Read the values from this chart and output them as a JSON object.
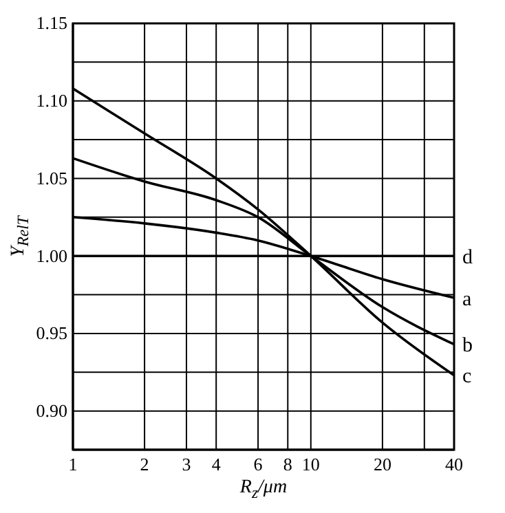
{
  "chart_data": {
    "type": "line",
    "xlabel": "R$_{z}$/μm",
    "ylabel": "Y$_{RelT}$",
    "log": "x",
    "x": [
      1,
      2,
      4,
      6,
      10,
      20,
      40
    ],
    "series": [
      {
        "name": "d",
        "color": "#000000",
        "values": [
          1.0,
          1.0,
          1.0,
          1.0,
          1.0,
          1.0,
          1.0
        ]
      },
      {
        "name": "a",
        "color": "#000000",
        "values": [
          1.025,
          1.021,
          1.015,
          1.01,
          1.0,
          0.985,
          0.973
        ]
      },
      {
        "name": "b",
        "color": "#000000",
        "values": [
          1.063,
          1.048,
          1.036,
          1.025,
          1.0,
          0.967,
          0.943
        ]
      },
      {
        "name": "c",
        "color": "#000000",
        "values": [
          1.108,
          1.079,
          1.05,
          1.03,
          1.0,
          0.957,
          0.923
        ]
      }
    ],
    "xlim": [
      1,
      40
    ],
    "xticks": [
      1,
      2,
      3,
      4,
      6,
      8,
      10,
      20,
      {
        "value": 30,
        "label": null
      },
      40
    ],
    "ylim": [
      0.875,
      1.15
    ],
    "yticks": [
      {
        "value": 0.9,
        "label": "0.90"
      },
      {
        "value": 0.925,
        "label": null
      },
      0.95,
      {
        "value": 0.975,
        "label": null
      },
      {
        "value": 1.0,
        "label": "1.00"
      },
      {
        "value": 1.025,
        "label": null
      },
      1.05,
      {
        "value": 1.075,
        "label": null
      },
      {
        "value": 1.1,
        "label": "1.10"
      },
      {
        "value": 1.125,
        "label": null
      },
      1.15
    ],
    "grid": true,
    "marker": "none",
    "line_style": "solid"
  }
}
